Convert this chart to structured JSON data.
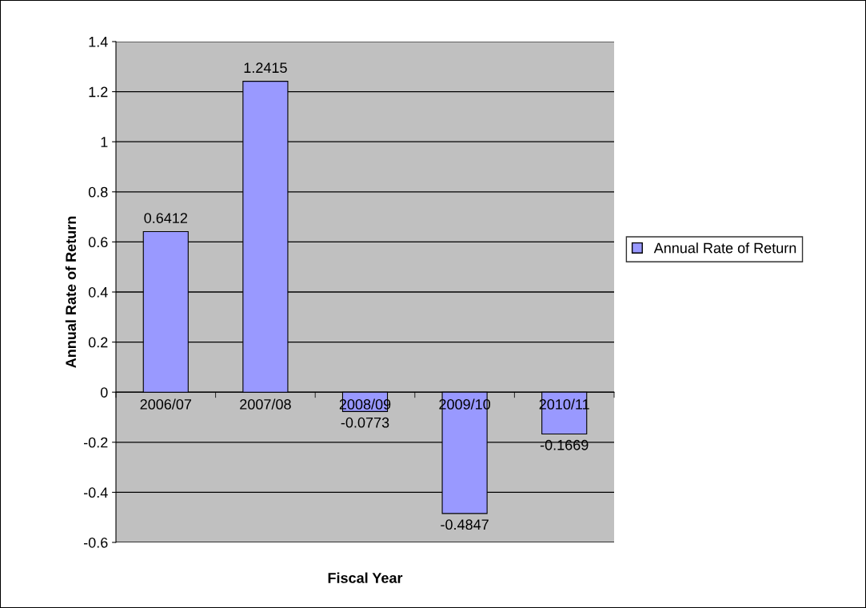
{
  "chart_data": {
    "type": "bar",
    "xlabel": "Fiscal Year",
    "ylabel": "Annual Rate of Return",
    "categories": [
      "2006/07",
      "2007/08",
      "2008/09",
      "2009/10",
      "2010/11"
    ],
    "series": [
      {
        "name": "Annual Rate of Return",
        "color": "#9999ff",
        "values": [
          0.6412,
          1.2415,
          -0.0773,
          -0.4847,
          -0.1669
        ]
      }
    ],
    "ylim": [
      -0.6,
      1.4
    ],
    "yticks": [
      -0.6,
      -0.4,
      -0.2,
      0,
      0.2,
      0.4,
      0.6,
      0.8,
      1,
      1.2,
      1.4
    ],
    "grid": "y",
    "legend": "right",
    "data_labels": true
  }
}
